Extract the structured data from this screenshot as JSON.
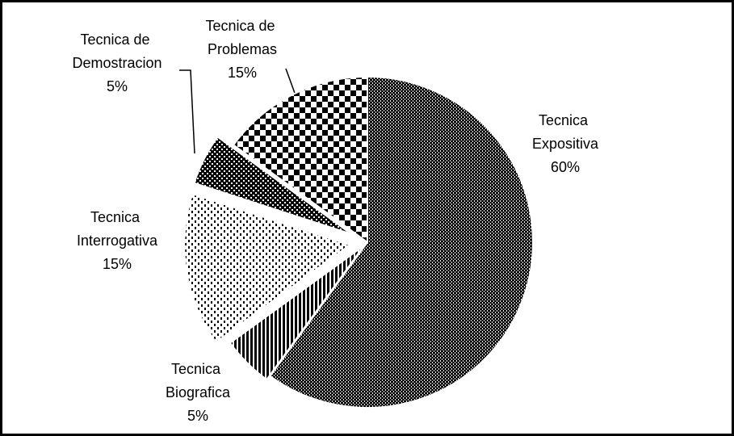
{
  "chart_data": {
    "type": "pie",
    "categories": [
      "Tecnica Expositiva",
      "Tecnica Biografica",
      "Tecnica Interrogativa",
      "Tecnica de Demostracion",
      "Tecnica de Problemas"
    ],
    "values": [
      60,
      5,
      15,
      5,
      15
    ],
    "value_labels": [
      "60%",
      "5%",
      "15%",
      "5%",
      "15%"
    ]
  }
}
